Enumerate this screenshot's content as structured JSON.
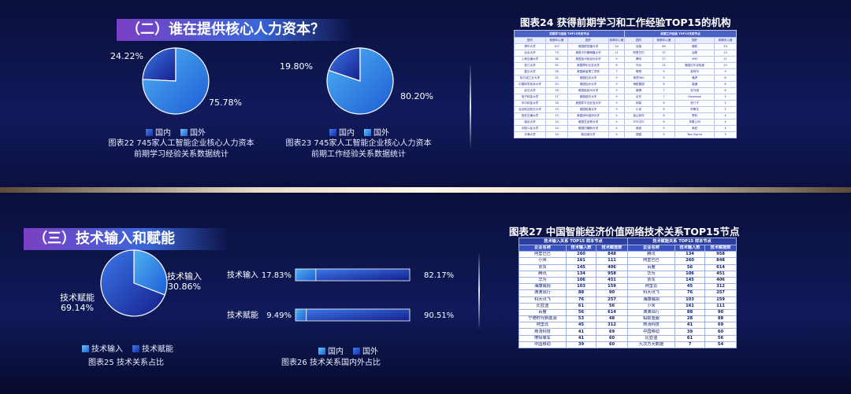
{
  "sections": {
    "s2_title": "（二）谁在提供核心人力资本？",
    "s3_title": "（三）技术输入和赋能"
  },
  "legend_labels": {
    "domestic": "国内",
    "foreign": "国外",
    "input": "技术输入",
    "enable": "技术赋能"
  },
  "captions": {
    "c22_line1": "图表22  745家人工智能企业核心人力资本",
    "c22_line2": "前期学习经验关系数据统计",
    "c23_line1": "图表23  745家人工智能企业核心人力资本",
    "c23_line2": "前期工作经验关系数据统计",
    "c25": "图表25 技术关系占比",
    "c26": "图表26 技术关系国内外占比"
  },
  "colors": {
    "domestic": "#1e4fd0",
    "foreign": "#3fa4ee",
    "deep": "#151f8c"
  },
  "chart_data": [
    {
      "type": "pie",
      "title": "图表22  745家人工智能企业核心人力资本 前期学习经验关系数据统计",
      "labels": [
        "国内",
        "国外"
      ],
      "values": [
        24.22,
        75.78
      ],
      "value_labels": [
        "24.22%",
        "75.78%"
      ]
    },
    {
      "type": "pie",
      "title": "图表23  745家人工智能企业核心人力资本 前期工作经验关系数据统计",
      "labels": [
        "国内",
        "国外"
      ],
      "values": [
        19.8,
        80.2
      ],
      "value_labels": [
        "19.80%",
        "80.20%"
      ]
    },
    {
      "type": "pie",
      "title": "图表25 技术关系占比",
      "labels": [
        "技术输入",
        "技术赋能"
      ],
      "values": [
        30.86,
        69.14
      ],
      "value_labels": [
        "技术输入",
        "30.86%",
        "技术赋能",
        "69.14%"
      ]
    },
    {
      "type": "bar",
      "title": "图表26 技术关系国内外占比",
      "orientation": "horizontal-stacked",
      "categories": [
        "技术输入",
        "技术赋能"
      ],
      "series": [
        {
          "name": "国内",
          "values": [
            17.83,
            9.49
          ],
          "value_labels": [
            "17.83%",
            "9.49%"
          ]
        },
        {
          "name": "国外",
          "values": [
            82.17,
            90.51
          ],
          "value_labels": [
            "82.17%",
            "90.51%"
          ]
        }
      ]
    },
    {
      "type": "table",
      "title": "图表24 获得前期学习和工作经验TOP15的机构",
      "group_headers": [
        "前期学习经验 TOP15关系节点",
        "前期工作经验 TOP15关系节点"
      ],
      "columns": [
        "国内",
        "前期中心度",
        "国外",
        "前期中心度",
        "国内",
        "前期中心度",
        "国外",
        "前期中心度"
      ],
      "rows": [
        [
          "清华大学",
          "107",
          "美国斯坦福大学",
          "24",
          "百度",
          "64",
          "微软",
          "33"
        ],
        [
          "北京大学",
          "73",
          "美国卡内基梅隆大学",
          "11",
          "阿里巴巴",
          "37",
          "谷歌",
          "15"
        ],
        [
          "上海交通大学",
          "38",
          "美国加州伯克利大学",
          "9",
          "腾讯",
          "27",
          "IBM",
          "11"
        ],
        [
          "浙江大学",
          "35",
          "美国哥伦比亚大学",
          "8",
          "华为",
          "21",
          "美国贝尔实验室",
          "10"
        ],
        [
          "复旦大学",
          "28",
          "美国麻省理工学院",
          "7",
          "联想",
          "9",
          "英特尔",
          "9"
        ],
        [
          "哈尔滨工业大学",
          "25",
          "美国杜克大学",
          "5",
          "奇虎360",
          "9",
          "雅虎",
          "8"
        ],
        [
          "中国科学技术大学",
          "20",
          "美国加州大学",
          "5",
          "海航集团",
          "8",
          "高通",
          "6"
        ],
        [
          "武汉大学",
          "18",
          "美国南加州大学",
          "5",
          "微博",
          "7",
          "亚马逊",
          "6"
        ],
        [
          "电子科技大学",
          "17",
          "美国纽约大学",
          "5",
          "京东",
          "7",
          "Facebook",
          "5"
        ],
        [
          "华中科技大学",
          "16",
          "美国宾夕法尼亚大学",
          "5",
          "网易",
          "6",
          "西门子",
          "5"
        ],
        [
          "北京航空航天大学",
          "15",
          "美国哈佛大学",
          "5",
          "小米",
          "6",
          "甲骨文",
          "5"
        ],
        [
          "西安交通大学",
          "15",
          "美国伊利诺伊大学",
          "4",
          "金山软件",
          "6",
          "思科",
          "4"
        ],
        [
          "南京大学",
          "14",
          "美国芝加哥大学",
          "4",
          "ZTE中兴",
          "6",
          "苹果公司",
          "4"
        ],
        [
          "中国人民大学",
          "14",
          "美国约翰斯大学",
          "4",
          "新浪",
          "5",
          "索尼",
          "4"
        ],
        [
          "天津大学",
          "14",
          "新加坡大学",
          "4",
          "搜狐",
          "5",
          "Two Sigma",
          "3"
        ]
      ]
    },
    {
      "type": "table",
      "title": "图表27 中国智能经济价值网络技术关系TOP15节点",
      "group_headers": [
        "技术输入关系 TOP15 样本节点",
        "技术赋能关系 TOP15 样本节点"
      ],
      "columns": [
        "企业名称",
        "技术输入数",
        "技术赋能数",
        "企业名称",
        "技术输入数",
        "技术赋能数"
      ],
      "rows": [
        [
          "阿里巴巴",
          "260",
          "848",
          "腾讯",
          "134",
          "958"
        ],
        [
          "小米",
          "161",
          "111",
          "阿里巴巴",
          "260",
          "848"
        ],
        [
          "京东",
          "145",
          "406",
          "百度",
          "56",
          "614"
        ],
        [
          "腾讯",
          "134",
          "958",
          "华为",
          "106",
          "451"
        ],
        [
          "华为",
          "106",
          "451",
          "京东",
          "145",
          "406"
        ],
        [
          "海康威视",
          "103",
          "159",
          "阿里云",
          "45",
          "312"
        ],
        [
          "滴滴出行",
          "88",
          "90",
          "科大讯飞",
          "76",
          "257"
        ],
        [
          "科大讯飞",
          "76",
          "257",
          "海康威视",
          "103",
          "159"
        ],
        [
          "比亚迪",
          "61",
          "56",
          "小米",
          "161",
          "111"
        ],
        [
          "百度",
          "56",
          "614",
          "滴滴出行",
          "88",
          "90"
        ],
        [
          "宁德时代新能源",
          "53",
          "48",
          "蚂蚁金服",
          "28",
          "88"
        ],
        [
          "阿里云",
          "45",
          "312",
          "商汤科技",
          "41",
          "69"
        ],
        [
          "商汤科技",
          "41",
          "69",
          "中国移动",
          "39",
          "60"
        ],
        [
          "摩拜单车",
          "41",
          "60",
          "比亚迪",
          "61",
          "56"
        ],
        [
          "中国移动",
          "39",
          "60",
          "九次方大数据",
          "7",
          "54"
        ]
      ]
    }
  ]
}
